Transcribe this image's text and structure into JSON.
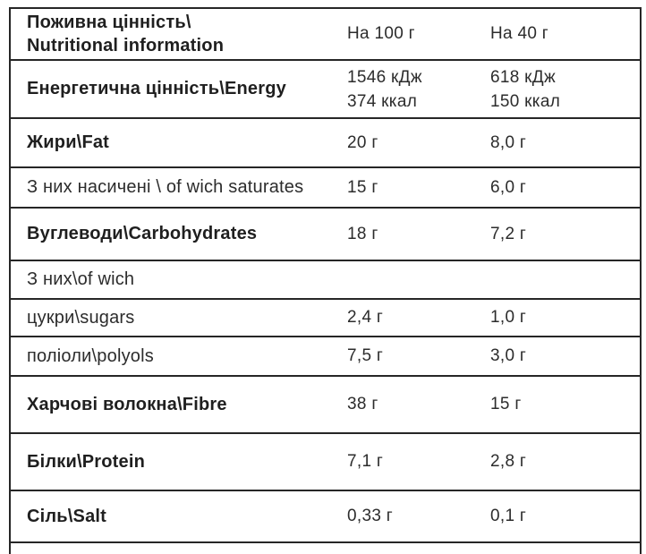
{
  "table": {
    "header": {
      "label": "Поживна цінність\\\nNutritional information",
      "col_per_100g": "На 100 г",
      "col_per_40g": "На 40 г"
    },
    "rows": [
      {
        "id": "energy",
        "label": "Енергетична цінність\\Energy",
        "per100": "1546 кДж\n374 ккал",
        "per40": "618 кДж\n150 ккал"
      },
      {
        "id": "fat",
        "label": "Жири\\Fat",
        "per100": "20 г",
        "per40": "8,0 г"
      },
      {
        "id": "saturates",
        "label": "З них насичені \\ of wich saturates",
        "per100": "15 г",
        "per40": "6,0 г"
      },
      {
        "id": "carbohydrates",
        "label": "Вуглеводи\\Carbohydrates",
        "per100": "18 г",
        "per40": "7,2 г"
      },
      {
        "id": "of-which",
        "label": "З них\\of wich",
        "per100": "",
        "per40": ""
      },
      {
        "id": "sugars",
        "label": "цукри\\sugars",
        "per100": "2,4 г",
        "per40": "1,0 г"
      },
      {
        "id": "polyols",
        "label": "поліоли\\polyols",
        "per100": "7,5 г",
        "per40": "3,0 г"
      },
      {
        "id": "fibre",
        "label": "Харчові волокна\\Fibre",
        "per100": "38 г",
        "per40": "15 г"
      },
      {
        "id": "protein",
        "label": "Білки\\Protein",
        "per100": "7,1 г",
        "per40": "2,8 г"
      },
      {
        "id": "salt",
        "label": "Сіль\\Salt",
        "per100": "0,33 г",
        "per40": "0,1 г"
      }
    ],
    "colors": {
      "text": "#1f1f1f",
      "secondary_text": "#2c2c2c",
      "border": "#262626",
      "background": "#ffffff"
    }
  }
}
